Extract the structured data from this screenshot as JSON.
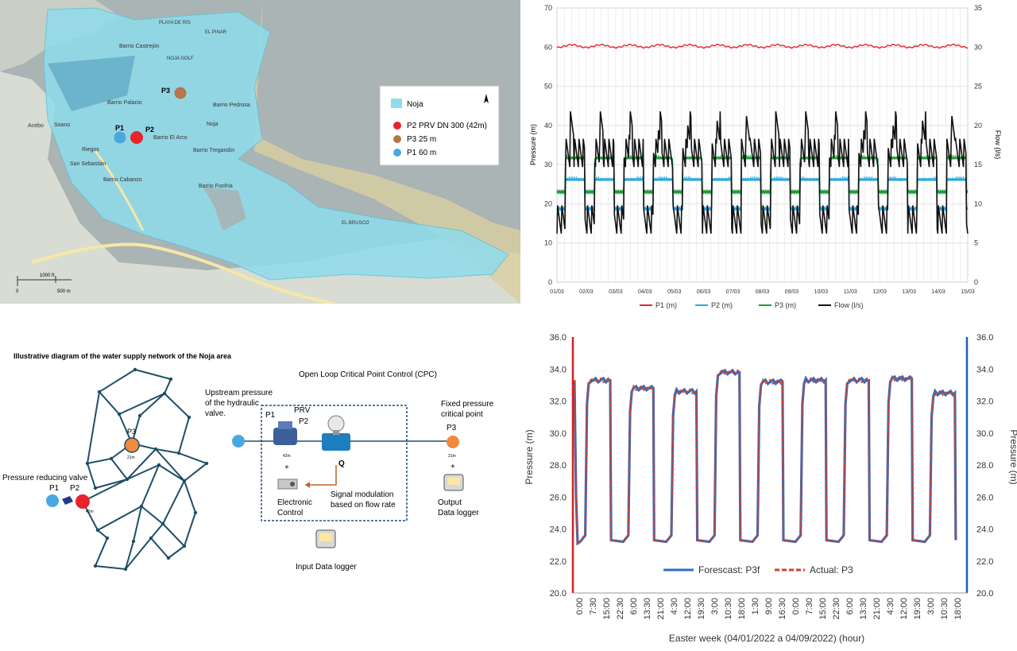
{
  "map": {
    "legend": [
      {
        "label": "Noja",
        "color": "#8fdcec"
      },
      {
        "label": "P2 PRV DN 300 (42m)",
        "color": "#e8242a"
      },
      {
        "label": "P3 25 m",
        "color": "#b8744a"
      },
      {
        "label": "P1 60 m",
        "color": "#4aa8e0"
      }
    ],
    "places": [
      "Barrio Castrejón",
      "Barrio Palacio",
      "Barrio El Arco",
      "Barrio Pedrosa",
      "Barrio Tregandín",
      "Barrio Cabanzo",
      "Barrio Fonfría",
      "Noja",
      "NOJA GOLF",
      "PLAYA DE RIS",
      "EL PINAR",
      "Acebo",
      "Soano",
      "Riegos",
      "San Sebastián",
      "EL BRUSCO"
    ],
    "points": [
      {
        "label": "P1",
        "color": "#4aa8e0"
      },
      {
        "label": "P2",
        "color": "#e8242a"
      },
      {
        "label": "P3",
        "color": "#b8744a"
      }
    ],
    "scale": {
      "ft": "1000 ft",
      "m": "500 m",
      "zero": "0"
    }
  },
  "diagram": {
    "title": "Illustrative diagram of the water supply network of the Noja area",
    "cpc_title": "Open Loop Critical Point Control (CPC)",
    "upstream": "Upstream pressure of the hydraulic valve.",
    "p1": "P1",
    "prv": "PRV",
    "p2": "P2",
    "q": "Q",
    "p3": "P3",
    "m42": "42m",
    "m21": "21m",
    "plus": "+",
    "fixed": "Fixed pressure critical point",
    "electronic": "Electronic Control",
    "signal": "Signal modulation based on flow rate",
    "output": "Output Data logger",
    "input": "Input  Data logger",
    "prv_label": "Pressure reducing valve",
    "net_p1": "P1",
    "net_p2": "P2",
    "net_p3": "P3",
    "colors": {
      "p1": "#4aa8e0",
      "p2": "#e8242a",
      "p3": "#f08a3c",
      "network": "#1f4e66",
      "box": "#1f4e8c",
      "arrow": "#c0622a"
    }
  },
  "chart_data": [
    {
      "type": "line",
      "categories": [
        "01/03",
        "02/03",
        "03/03",
        "04/03",
        "05/03",
        "06/03",
        "07/03",
        "08/03",
        "09/03",
        "10/03",
        "11/03",
        "12/03",
        "13/03",
        "14/03",
        "15/03"
      ],
      "ylabel": "Pressure (m)",
      "y2label": "Flow (l/s)",
      "ylim": [
        0,
        70
      ],
      "y2lim": [
        0,
        35
      ],
      "yticks": [
        0,
        10,
        20,
        30,
        40,
        50,
        60,
        70
      ],
      "y2ticks": [
        0,
        5,
        10,
        15,
        20,
        25,
        30,
        35
      ],
      "grid": true,
      "legend_position": "bottom",
      "series": [
        {
          "name": "P1 (m)",
          "color": "#e8242a",
          "axis": "left",
          "day": 60.6,
          "night": 59.9
        },
        {
          "name": "P2  (m)",
          "color": "#27a6e0",
          "axis": "left",
          "day": 26.0,
          "night": 18.5
        },
        {
          "name": "P3 (m)",
          "color": "#1e9b3a",
          "axis": "left",
          "day": 31.5,
          "night": 22.8
        },
        {
          "name": "Flow (l/s)",
          "color": "#111111",
          "axis": "right",
          "day": 16.5,
          "night": 8.0,
          "peak": 20.0
        }
      ]
    },
    {
      "type": "line",
      "categories": [
        "0:00",
        "7:30",
        "15:00",
        "22:30",
        "6:00",
        "13:30",
        "21:00",
        "4:30",
        "12:00",
        "19:30",
        "3:00",
        "10:30",
        "18:00",
        "1:30",
        "9:00",
        "16:30",
        "0:00",
        "7:30",
        "15:00",
        "22:30",
        "6:00",
        "13:30",
        "21:00",
        "4:30",
        "12:00",
        "19:30",
        "3:00",
        "10:30",
        "18:00"
      ],
      "xlabel": "Easter week (04/01/2022 a 04/09/2022) (hour)",
      "ylabel": "Pressure (m)",
      "y2label": "Pressure (m)",
      "ylim": [
        20,
        36
      ],
      "yticks": [
        "20.0",
        "22.0",
        "24.0",
        "26.0",
        "28.0",
        "30.0",
        "32.0",
        "34.0",
        "36.0"
      ],
      "legend_position": "bottom-center",
      "series": [
        {
          "name": "Forescast: P3f",
          "color": "#2f6fbf",
          "style": "solid"
        },
        {
          "name": "Actual: P3",
          "color": "#d23f2e",
          "style": "dashed"
        }
      ],
      "day_levels": [
        33.3,
        32.8,
        32.6,
        33.8,
        33.2,
        33.3,
        33.3,
        33.4,
        32.5
      ],
      "night_level": 23.1,
      "axis_colors": {
        "left": "#d42020",
        "right": "#2060b0"
      }
    }
  ]
}
